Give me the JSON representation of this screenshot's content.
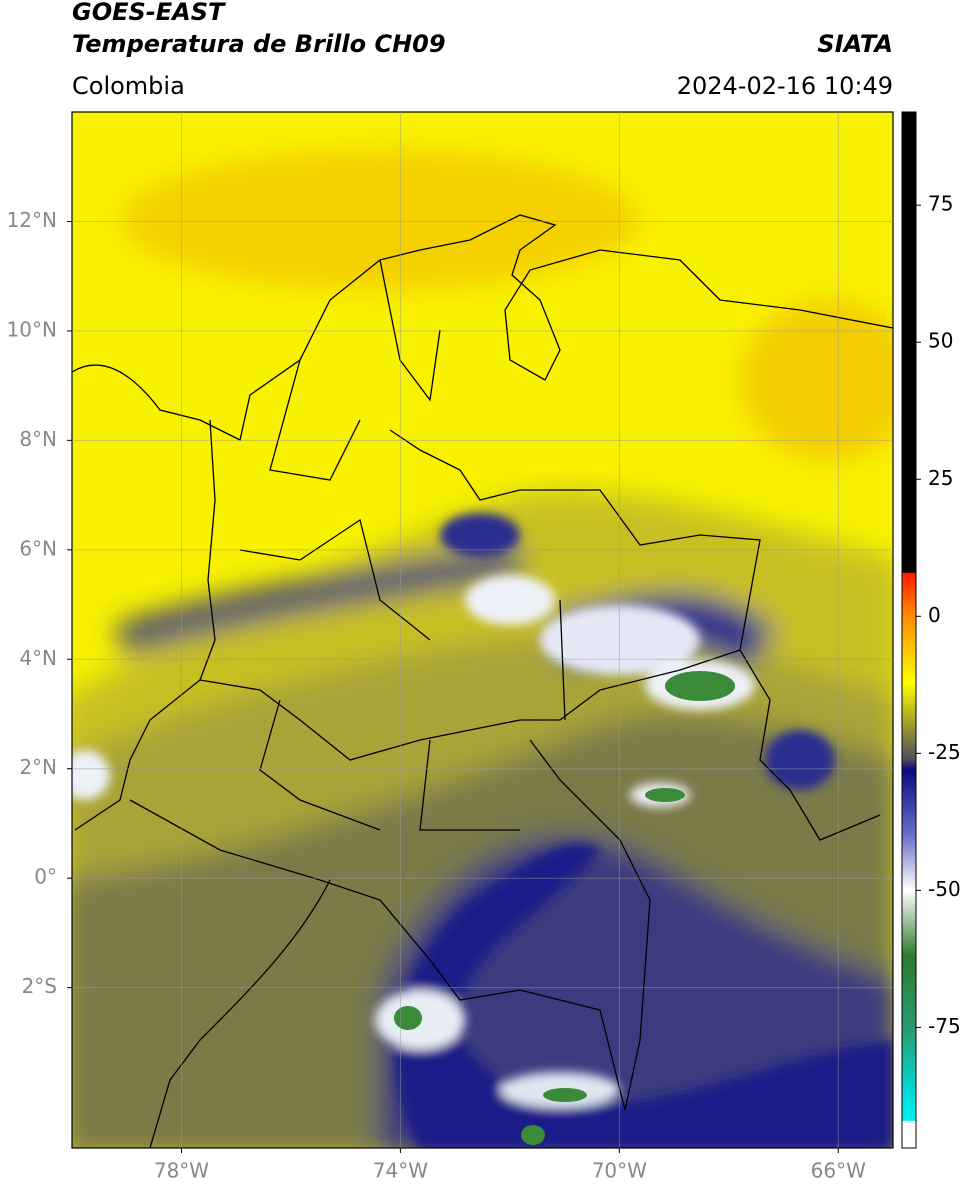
{
  "header": {
    "title": "GOES-EAST",
    "subtitle": "Temperatura de Brillo CH09",
    "source": "SIATA",
    "region": "Colombia",
    "datetime": "2024-02-16 10:49"
  },
  "map": {
    "xlim": [
      -80,
      -65
    ],
    "ylim": [
      -4.93,
      14
    ],
    "grid": true,
    "xticks": [
      {
        "value": -78,
        "label": "78°W"
      },
      {
        "value": -74,
        "label": "74°W"
      },
      {
        "value": -70,
        "label": "70°W"
      },
      {
        "value": -66,
        "label": "66°W"
      }
    ],
    "yticks": [
      {
        "value": 12,
        "label": "12°N"
      },
      {
        "value": 10,
        "label": "10°N"
      },
      {
        "value": 8,
        "label": "8°N"
      },
      {
        "value": 6,
        "label": "6°N"
      },
      {
        "value": 4,
        "label": "4°N"
      },
      {
        "value": 2,
        "label": "2°N"
      },
      {
        "value": 0,
        "label": "0°"
      },
      {
        "value": -2,
        "label": "2°S"
      }
    ]
  },
  "colorbar": {
    "lim": [
      -97,
      92
    ],
    "ticks": [
      75,
      50,
      25,
      0,
      -25,
      -50,
      -75
    ],
    "stops": [
      {
        "value": 92,
        "color": "#000000"
      },
      {
        "value": 8,
        "color": "#000000"
      },
      {
        "value": 7.9,
        "color": "#ff1a00"
      },
      {
        "value": 0,
        "color": "#ff8c00"
      },
      {
        "value": -12,
        "color": "#ffff00"
      },
      {
        "value": -20,
        "color": "#9a9a30"
      },
      {
        "value": -26,
        "color": "#50505a"
      },
      {
        "value": -28,
        "color": "#0a0a80"
      },
      {
        "value": -40,
        "color": "#6a70c8"
      },
      {
        "value": -50,
        "color": "#ffffff"
      },
      {
        "value": -62,
        "color": "#2d7a2d"
      },
      {
        "value": -75,
        "color": "#2a9a70"
      },
      {
        "value": -88,
        "color": "#00e0e0"
      },
      {
        "value": -92,
        "color": "#00f0f0"
      },
      {
        "value": -92.1,
        "color": "#ffffff"
      },
      {
        "value": -97,
        "color": "#ffffff"
      }
    ]
  }
}
